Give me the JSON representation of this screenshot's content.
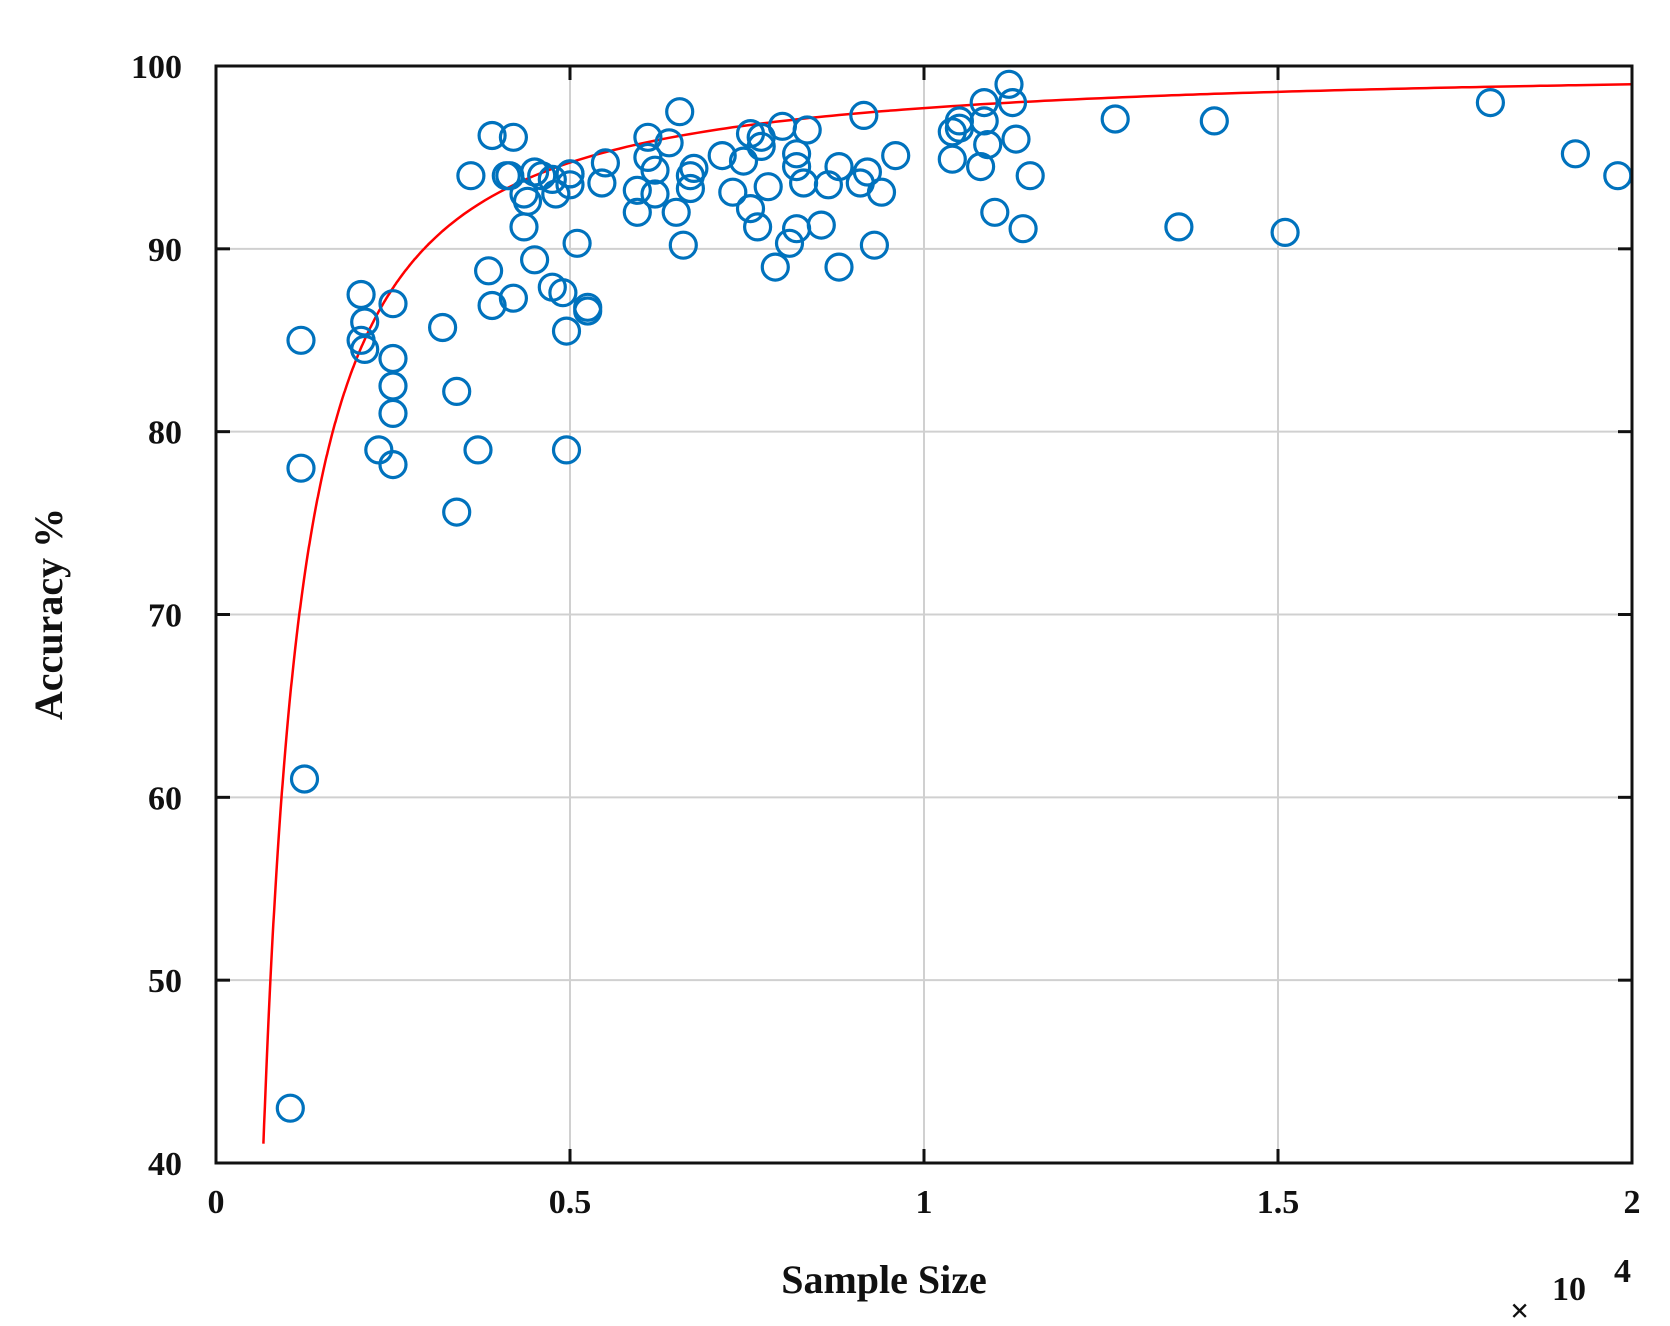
{
  "chart_data": {
    "type": "scatter",
    "xlabel": "Sample Size",
    "ylabel": "Accuracy %",
    "x_multiplier_label": "10",
    "x_multiplier_exponent": "4",
    "x_multiplier_symbol": "×",
    "xlim": [
      0,
      20000
    ],
    "ylim": [
      40,
      100
    ],
    "grid": true,
    "x_ticks": [
      {
        "value": 0,
        "label": "0"
      },
      {
        "value": 5000,
        "label": "0.5"
      },
      {
        "value": 10000,
        "label": "1"
      },
      {
        "value": 15000,
        "label": "1.5"
      },
      {
        "value": 20000,
        "label": "2"
      }
    ],
    "y_ticks": [
      {
        "value": 40,
        "label": "40"
      },
      {
        "value": 50,
        "label": "50"
      },
      {
        "value": 60,
        "label": "60"
      },
      {
        "value": 70,
        "label": "70"
      },
      {
        "value": 80,
        "label": "80"
      },
      {
        "value": 90,
        "label": "90"
      },
      {
        "value": 100,
        "label": "100"
      }
    ],
    "colors": {
      "points": "#0072BD",
      "fit": "#ff0000"
    },
    "series": [
      {
        "name": "observations",
        "marker": "circle",
        "points": [
          [
            1050,
            43
          ],
          [
            1250,
            61
          ],
          [
            1200,
            78
          ],
          [
            1200,
            85
          ],
          [
            2050,
            85
          ],
          [
            2100,
            84.5
          ],
          [
            2100,
            86
          ],
          [
            2050,
            87.5
          ],
          [
            2500,
            87
          ],
          [
            2500,
            84
          ],
          [
            2500,
            82.5
          ],
          [
            2500,
            81
          ],
          [
            2300,
            79
          ],
          [
            2500,
            78.2
          ],
          [
            3200,
            85.7
          ],
          [
            3400,
            82.2
          ],
          [
            3400,
            75.6
          ],
          [
            3700,
            79
          ],
          [
            3600,
            94
          ],
          [
            3900,
            96.2
          ],
          [
            3850,
            88.8
          ],
          [
            3900,
            86.9
          ],
          [
            4100,
            94
          ],
          [
            4150,
            94
          ],
          [
            4200,
            96.1
          ],
          [
            4200,
            87.3
          ],
          [
            4350,
            93
          ],
          [
            4350,
            91.2
          ],
          [
            4400,
            92.6
          ],
          [
            4500,
            94.2
          ],
          [
            4600,
            94
          ],
          [
            4750,
            93.8
          ],
          [
            4800,
            93
          ],
          [
            4500,
            89.4
          ],
          [
            4750,
            87.9
          ],
          [
            4900,
            87.6
          ],
          [
            4950,
            85.5
          ],
          [
            4950,
            79
          ],
          [
            5000,
            94.1
          ],
          [
            5000,
            93.5
          ],
          [
            5000,
            94.1
          ],
          [
            5100,
            90.3
          ],
          [
            5250,
            86.8
          ],
          [
            5250,
            86.6
          ],
          [
            5450,
            93.6
          ],
          [
            5500,
            94.7
          ],
          [
            5950,
            93.2
          ],
          [
            5950,
            92
          ],
          [
            6100,
            96.1
          ],
          [
            6100,
            95
          ],
          [
            6200,
            94.3
          ],
          [
            6200,
            93
          ],
          [
            6400,
            95.8
          ],
          [
            6500,
            92
          ],
          [
            6550,
            97.5
          ],
          [
            6600,
            90.2
          ],
          [
            6700,
            93.3
          ],
          [
            6750,
            94.4
          ],
          [
            6700,
            94
          ],
          [
            7150,
            95.1
          ],
          [
            7300,
            93.1
          ],
          [
            7450,
            94.8
          ],
          [
            7550,
            96.3
          ],
          [
            7550,
            92.2
          ],
          [
            7650,
            91.2
          ],
          [
            7700,
            96.1
          ],
          [
            7700,
            95.6
          ],
          [
            7800,
            93.4
          ],
          [
            7900,
            89
          ],
          [
            8000,
            96.7
          ],
          [
            8100,
            90.3
          ],
          [
            8200,
            95.2
          ],
          [
            8200,
            94.5
          ],
          [
            8200,
            91.1
          ],
          [
            8300,
            93.6
          ],
          [
            8350,
            96.5
          ],
          [
            8550,
            91.3
          ],
          [
            8650,
            93.5
          ],
          [
            8800,
            94.5
          ],
          [
            8800,
            89
          ],
          [
            9100,
            93.6
          ],
          [
            9150,
            97.3
          ],
          [
            9200,
            94.2
          ],
          [
            9300,
            90.2
          ],
          [
            9400,
            93.1
          ],
          [
            9600,
            95.1
          ],
          [
            10400,
            96.4
          ],
          [
            10400,
            94.9
          ],
          [
            10500,
            97
          ],
          [
            10500,
            96.6
          ],
          [
            10800,
            94.5
          ],
          [
            10850,
            98
          ],
          [
            10850,
            97
          ],
          [
            10900,
            95.7
          ],
          [
            11000,
            92
          ],
          [
            11200,
            99
          ],
          [
            11250,
            98
          ],
          [
            11300,
            96
          ],
          [
            11400,
            91.1
          ],
          [
            11500,
            94
          ],
          [
            12700,
            97.1
          ],
          [
            13600,
            91.2
          ],
          [
            14100,
            97
          ],
          [
            15100,
            90.9
          ],
          [
            18000,
            98
          ],
          [
            19200,
            95.2
          ],
          [
            19800,
            94
          ]
        ]
      },
      {
        "name": "fit",
        "marker": "line",
        "model": "y = 100 - 2.3 / (x/10000)^1.2",
        "domain": [
          260,
          20000
        ]
      }
    ]
  }
}
